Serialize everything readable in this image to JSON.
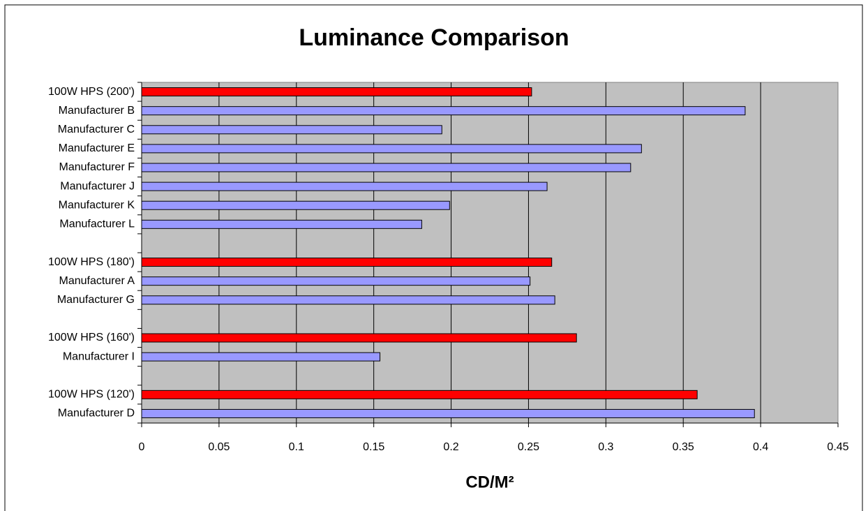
{
  "chart_data": {
    "type": "barh",
    "title": "Luminance Comparison",
    "x_label": "CD/M²",
    "categories": [
      "100W HPS (200')",
      "Manufacturer B",
      "Manufacturer C",
      "Manufacturer E",
      "Manufacturer F",
      "Manufacturer J",
      "Manufacturer K",
      "Manufacturer L",
      null,
      "100W HPS (180')",
      "Manufacturer A",
      "Manufacturer G",
      null,
      "100W HPS (160')",
      "Manufacturer I",
      null,
      "100W HPS (120')",
      "Manufacturer D"
    ],
    "values": [
      0.252,
      0.39,
      0.194,
      0.323,
      0.316,
      0.262,
      0.199,
      0.181,
      null,
      0.265,
      0.251,
      0.267,
      null,
      0.281,
      0.154,
      null,
      0.359,
      0.396
    ],
    "colors": [
      "#ff0000",
      "#9999ff",
      "#9999ff",
      "#9999ff",
      "#9999ff",
      "#9999ff",
      "#9999ff",
      "#9999ff",
      null,
      "#ff0000",
      "#9999ff",
      "#9999ff",
      null,
      "#ff0000",
      "#9999ff",
      null,
      "#ff0000",
      "#9999ff"
    ],
    "xlim": [
      0,
      0.45
    ],
    "xticks": [
      0,
      0.05,
      0.1,
      0.15,
      0.2,
      0.25,
      0.3,
      0.35,
      0.4,
      0.45
    ],
    "grid": true,
    "plot_background": "#c0c0c0"
  }
}
